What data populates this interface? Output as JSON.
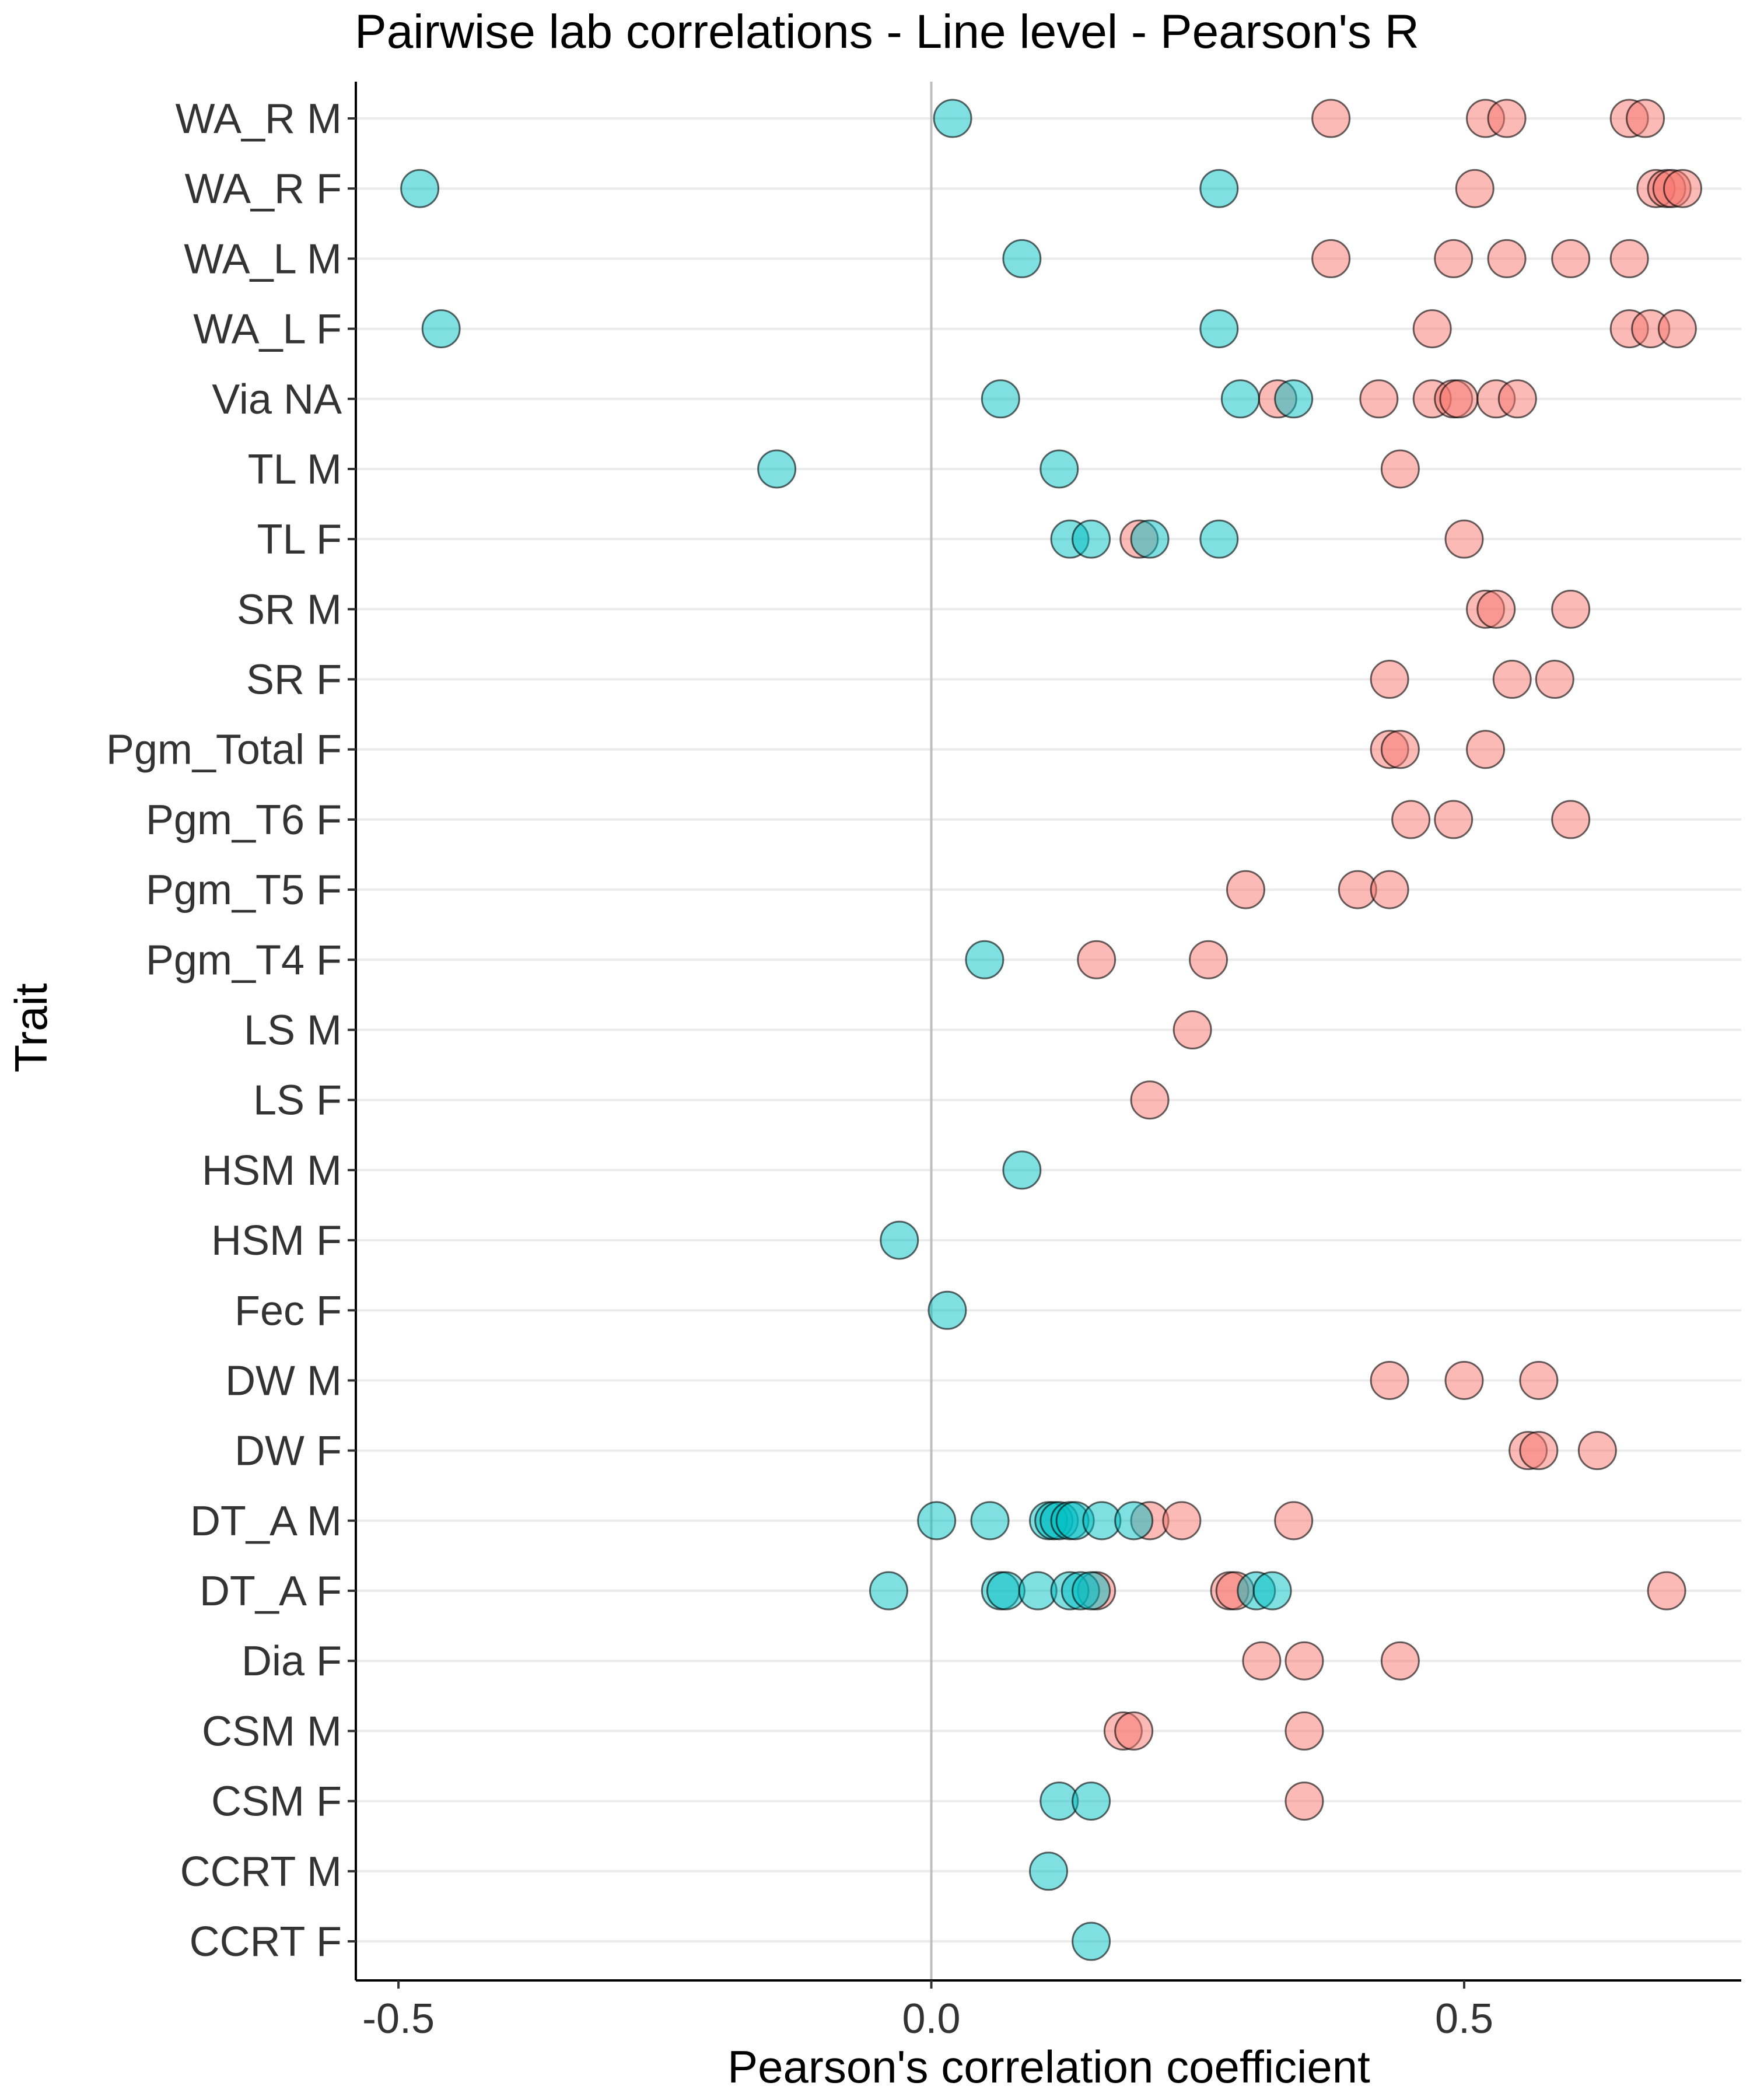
{
  "chart_data": {
    "type": "scatter",
    "title": "Pairwise lab correlations - Line level - Pearson's R",
    "xlabel": "Pearson's correlation coefficient",
    "ylabel": "Trait",
    "xlim": [
      -0.54,
      0.76
    ],
    "xticks": [
      "-0.5",
      "0.0",
      "0.5"
    ],
    "xtick_values": [
      -0.5,
      0.0,
      0.5
    ],
    "reference_line": 0.0,
    "grid": "horizontal major",
    "legend": "none",
    "colors": {
      "pos": "#F8766D",
      "neg": "#00BFC4",
      "outline": "#000000",
      "zero_line": "#BEBEBE",
      "grid": "#EBEBEB"
    },
    "categories": [
      "WA_R M",
      "WA_R F",
      "WA_L M",
      "WA_L F",
      "Via NA",
      "TL M",
      "TL F",
      "SR M",
      "SR F",
      "Pgm_Total F",
      "Pgm_T6 F",
      "Pgm_T5 F",
      "Pgm_T4 F",
      "LS M",
      "LS F",
      "HSM M",
      "HSM F",
      "Fec F",
      "DW M",
      "DW F",
      "DT_A M",
      "DT_A F",
      "Dia F",
      "CSM M",
      "CSM F",
      "CCRT M",
      "CCRT F"
    ],
    "series": [
      {
        "group": "red",
        "points": [
          [
            "WA_R M",
            0.375
          ],
          [
            "WA_R M",
            0.52
          ],
          [
            "WA_R M",
            0.54
          ],
          [
            "WA_R M",
            0.655
          ],
          [
            "WA_R M",
            0.67
          ],
          [
            "WA_R F",
            0.51
          ],
          [
            "WA_R F",
            0.68
          ],
          [
            "WA_R F",
            0.69
          ],
          [
            "WA_R F",
            0.695
          ],
          [
            "WA_R F",
            0.705
          ],
          [
            "WA_L M",
            0.375
          ],
          [
            "WA_L M",
            0.49
          ],
          [
            "WA_L M",
            0.54
          ],
          [
            "WA_L M",
            0.6
          ],
          [
            "WA_L M",
            0.655
          ],
          [
            "WA_L F",
            0.47
          ],
          [
            "WA_L F",
            0.655
          ],
          [
            "WA_L F",
            0.675
          ],
          [
            "WA_L F",
            0.7
          ],
          [
            "Via NA",
            0.325
          ],
          [
            "Via NA",
            0.42
          ],
          [
            "Via NA",
            0.47
          ],
          [
            "Via NA",
            0.49
          ],
          [
            "Via NA",
            0.495
          ],
          [
            "Via NA",
            0.53
          ],
          [
            "Via NA",
            0.55
          ],
          [
            "TL M",
            0.44
          ],
          [
            "TL F",
            0.195
          ],
          [
            "TL F",
            0.5
          ],
          [
            "SR M",
            0.52
          ],
          [
            "SR M",
            0.53
          ],
          [
            "SR M",
            0.6
          ],
          [
            "SR F",
            0.43
          ],
          [
            "SR F",
            0.545
          ],
          [
            "SR F",
            0.585
          ],
          [
            "Pgm_Total F",
            0.43
          ],
          [
            "Pgm_Total F",
            0.44
          ],
          [
            "Pgm_Total F",
            0.52
          ],
          [
            "Pgm_T6 F",
            0.45
          ],
          [
            "Pgm_T6 F",
            0.49
          ],
          [
            "Pgm_T6 F",
            0.6
          ],
          [
            "Pgm_T5 F",
            0.295
          ],
          [
            "Pgm_T5 F",
            0.4
          ],
          [
            "Pgm_T5 F",
            0.43
          ],
          [
            "Pgm_T4 F",
            0.155
          ],
          [
            "Pgm_T4 F",
            0.26
          ],
          [
            "LS M",
            0.245
          ],
          [
            "LS F",
            0.205
          ],
          [
            "DW M",
            0.43
          ],
          [
            "DW M",
            0.5
          ],
          [
            "DW M",
            0.57
          ],
          [
            "DW F",
            0.56
          ],
          [
            "DW F",
            0.57
          ],
          [
            "DW F",
            0.625
          ],
          [
            "DT_A M",
            0.205
          ],
          [
            "DT_A M",
            0.235
          ],
          [
            "DT_A M",
            0.34
          ],
          [
            "DT_A F",
            0.155
          ],
          [
            "DT_A F",
            0.28
          ],
          [
            "DT_A F",
            0.285
          ],
          [
            "DT_A F",
            0.69
          ],
          [
            "Dia F",
            0.31
          ],
          [
            "Dia F",
            0.35
          ],
          [
            "Dia F",
            0.44
          ],
          [
            "CSM M",
            0.18
          ],
          [
            "CSM M",
            0.19
          ],
          [
            "CSM M",
            0.35
          ],
          [
            "CSM F",
            0.35
          ]
        ]
      },
      {
        "group": "teal",
        "points": [
          [
            "WA_R M",
            0.02
          ],
          [
            "WA_R F",
            -0.48
          ],
          [
            "WA_R F",
            0.27
          ],
          [
            "WA_L M",
            0.085
          ],
          [
            "WA_L F",
            -0.46
          ],
          [
            "WA_L F",
            0.27
          ],
          [
            "Via NA",
            0.065
          ],
          [
            "Via NA",
            0.29
          ],
          [
            "Via NA",
            0.34
          ],
          [
            "TL M",
            -0.145
          ],
          [
            "TL M",
            0.12
          ],
          [
            "TL F",
            0.13
          ],
          [
            "TL F",
            0.15
          ],
          [
            "TL F",
            0.205
          ],
          [
            "TL F",
            0.27
          ],
          [
            "Pgm_T4 F",
            0.05
          ],
          [
            "HSM M",
            0.085
          ],
          [
            "HSM F",
            -0.03
          ],
          [
            "Fec F",
            0.015
          ],
          [
            "DT_A M",
            0.005
          ],
          [
            "DT_A M",
            0.055
          ],
          [
            "DT_A M",
            0.11
          ],
          [
            "DT_A M",
            0.115
          ],
          [
            "DT_A M",
            0.12
          ],
          [
            "DT_A M",
            0.13
          ],
          [
            "DT_A M",
            0.135
          ],
          [
            "DT_A M",
            0.16
          ],
          [
            "DT_A M",
            0.19
          ],
          [
            "DT_A F",
            -0.04
          ],
          [
            "DT_A F",
            0.065
          ],
          [
            "DT_A F",
            0.07
          ],
          [
            "DT_A F",
            0.1
          ],
          [
            "DT_A F",
            0.13
          ],
          [
            "DT_A F",
            0.14
          ],
          [
            "DT_A F",
            0.15
          ],
          [
            "DT_A F",
            0.305
          ],
          [
            "DT_A F",
            0.32
          ],
          [
            "CSM F",
            0.12
          ],
          [
            "CSM F",
            0.15
          ],
          [
            "CCRT M",
            0.11
          ],
          [
            "CCRT F",
            0.15
          ]
        ]
      }
    ]
  }
}
